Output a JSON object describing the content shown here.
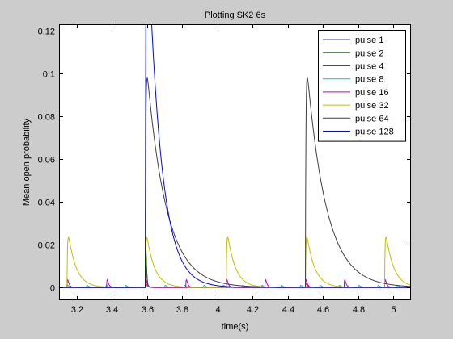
{
  "chart_data": {
    "type": "line",
    "title": "Plotting SK2 6s",
    "xlabel": "time(s)",
    "ylabel": "Mean open probability",
    "xlim": [
      3.1,
      5.1
    ],
    "ylim": [
      -0.006,
      0.123
    ],
    "xticks": [
      3.2,
      3.4,
      3.6,
      3.8,
      4,
      4.2,
      4.4,
      4.6,
      4.8,
      5
    ],
    "xtick_labels": [
      "3.2",
      "3.4",
      "3.6",
      "3.8",
      "4",
      "4.2",
      "4.4",
      "4.6",
      "4.8",
      "5"
    ],
    "yticks": [
      0,
      0.02,
      0.04,
      0.06,
      0.08,
      0.1,
      0.12
    ],
    "ytick_labels": [
      "0",
      "0.02",
      "0.04",
      "0.06",
      "0.08",
      "0.1",
      "0.12"
    ],
    "grid": false,
    "legend_placement": "top-right",
    "series": [
      {
        "name": "pulse 1",
        "color": "#00007f",
        "onsets": [
          3.59
        ],
        "peak": 0.068,
        "tau": 0.004
      },
      {
        "name": "pulse 2",
        "color": "#007f00",
        "onsets": [
          3.59
        ],
        "peak": 0.058,
        "tau": 0.004
      },
      {
        "name": "pulse 4",
        "color": "#ff0000",
        "onsets": [
          3.59,
          4.5
        ],
        "peak": 0.004,
        "tau": 0.008
      },
      {
        "name": "pulse 8",
        "color": "#00bfbf",
        "onsets": [
          3.145,
          3.255,
          3.365,
          3.475,
          3.59,
          3.7,
          3.81,
          3.92,
          4.03,
          4.14,
          4.25,
          4.36,
          4.47,
          4.58,
          4.69,
          4.8,
          4.91,
          5.02
        ],
        "peak": 0.002,
        "tau": 0.01
      },
      {
        "name": "pulse 16",
        "color": "#bf00bf",
        "onsets": [
          3.145,
          3.37,
          3.59,
          3.82,
          4.05,
          4.27,
          4.5,
          4.72,
          4.95
        ],
        "peak": 0.008,
        "tau": 0.008
      },
      {
        "name": "pulse 32",
        "color": "#bfbf00",
        "onsets": [
          3.145,
          3.59,
          4.05,
          4.5,
          4.95
        ],
        "peak": 0.03,
        "tau": 0.045
      },
      {
        "name": "pulse 64",
        "color": "#3f3f3f",
        "onsets": [
          3.59,
          4.5
        ],
        "peak": 0.111,
        "tau": 0.11
      },
      {
        "name": "pulse 128",
        "color": "#0000ff",
        "onsets": [
          3.59
        ],
        "peak": 0.2,
        "tau": 0.075
      }
    ]
  }
}
